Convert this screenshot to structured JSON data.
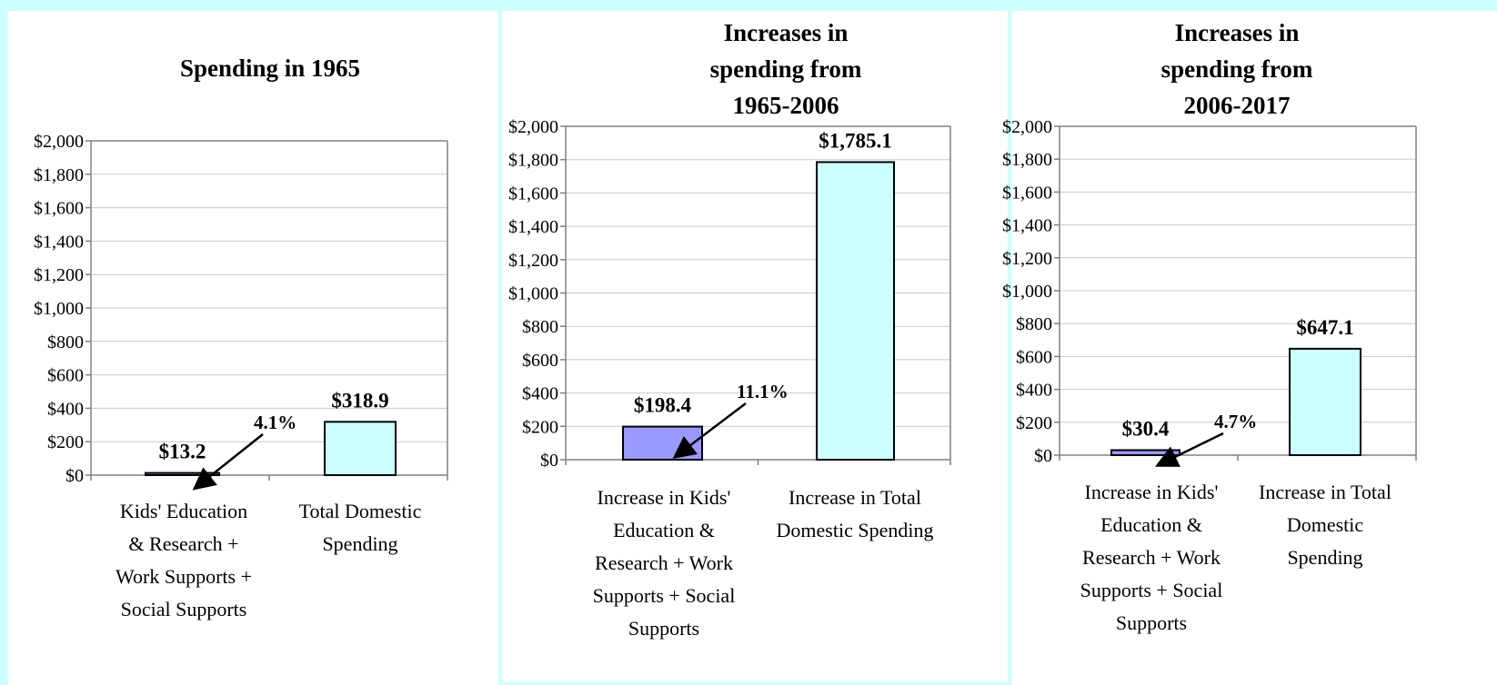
{
  "colors": {
    "background": "#ccffff",
    "kids_bar": "#9999ff",
    "total_bar": "#ccffff",
    "bar_border": "#000000"
  },
  "chart_data": [
    {
      "type": "bar",
      "title": [
        "Spending in 1965"
      ],
      "categories": [
        [
          "Kids' Education",
          "& Research +",
          "Work Supports +",
          "Social Supports"
        ],
        [
          "Total Domestic",
          "Spending"
        ]
      ],
      "values": [
        13.2,
        318.9
      ],
      "value_labels": [
        "$13.2",
        "$318.9"
      ],
      "share_label": "4.1%",
      "ylim": [
        0,
        2000
      ],
      "yticks": [
        "$0",
        "$200",
        "$400",
        "$600",
        "$800",
        "$1,000",
        "$1,200",
        "$1,400",
        "$1,600",
        "$1,800",
        "$2,000"
      ],
      "grid": true
    },
    {
      "type": "bar",
      "title": [
        "Increases in",
        "spending from",
        "1965-2006"
      ],
      "categories": [
        [
          "Increase in Kids'",
          "Education &",
          "Research + Work",
          "Supports + Social",
          "Supports"
        ],
        [
          "Increase in Total",
          "Domestic Spending"
        ]
      ],
      "values": [
        198.4,
        1785.1
      ],
      "value_labels": [
        "$198.4",
        "$1,785.1"
      ],
      "share_label": "11.1%",
      "ylim": [
        0,
        2000
      ],
      "yticks": [
        "$0",
        "$200",
        "$400",
        "$600",
        "$800",
        "$1,000",
        "$1,200",
        "$1,400",
        "$1,600",
        "$1,800",
        "$2,000"
      ],
      "grid": true
    },
    {
      "type": "bar",
      "title": [
        "Increases in",
        "spending from",
        "2006-2017"
      ],
      "categories": [
        [
          "Increase in Kids'",
          "Education &",
          "Research + Work",
          "Supports + Social",
          "Supports"
        ],
        [
          "Increase in Total",
          "Domestic",
          "Spending"
        ]
      ],
      "values": [
        30.4,
        647.1
      ],
      "value_labels": [
        "$30.4",
        "$647.1"
      ],
      "share_label": "4.7%",
      "ylim": [
        0,
        2000
      ],
      "yticks": [
        "$0",
        "$200",
        "$400",
        "$600",
        "$800",
        "$1,000",
        "$1,200",
        "$1,400",
        "$1,600",
        "$1,800",
        "$2,000"
      ],
      "grid": true
    }
  ]
}
